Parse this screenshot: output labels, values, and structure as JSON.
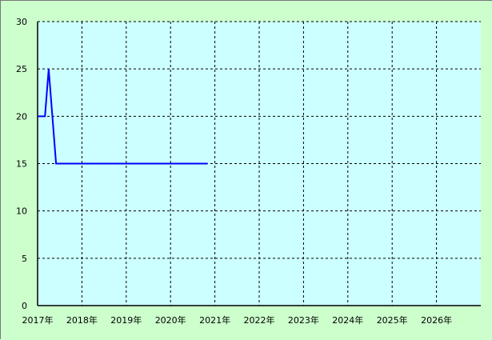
{
  "chart_data": {
    "type": "line",
    "title": "",
    "xlabel": "",
    "ylabel": "",
    "xlim": [
      "2017-01",
      "2027-01"
    ],
    "ylim": [
      0,
      30
    ],
    "y_ticks": [
      "0",
      "5",
      "10",
      "15",
      "20",
      "25",
      "30"
    ],
    "x_ticks": [
      "2017年",
      "2018年",
      "2019年",
      "2020年",
      "2021年",
      "2022年",
      "2023年",
      "2024年",
      "2025年",
      "2026年"
    ],
    "grid": true,
    "series": [
      {
        "points": [
          {
            "x": "2017-01",
            "y": 20
          },
          {
            "x": "2017-03",
            "y": 20
          },
          {
            "x": "2017-04",
            "y": 25
          },
          {
            "x": "2017-05",
            "y": 20
          },
          {
            "x": "2017-06",
            "y": 15
          },
          {
            "x": "2020-11",
            "y": 15
          }
        ],
        "color": "#0000ff"
      }
    ],
    "colors": {
      "background": "#ccffcc",
      "plot_area": "#ccffff",
      "line": "#0000ff",
      "grid": "#000000"
    }
  }
}
